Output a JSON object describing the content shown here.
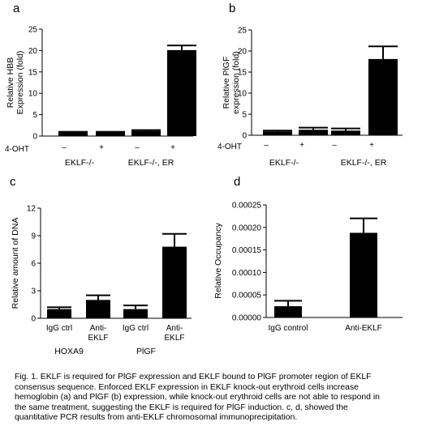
{
  "chart_data": [
    {
      "panel": "a",
      "type": "bar",
      "ylabel": [
        "Relative HBB",
        "Expression (fold)"
      ],
      "ylim": [
        0,
        25
      ],
      "yticks": [
        "0",
        "5",
        "10",
        "15",
        "20",
        "25"
      ],
      "treatment_label": "4-OHT",
      "treatment": [
        "–",
        "+",
        "–",
        "+"
      ],
      "groups": [
        "EKLF-/-",
        "EKLF-/-, ER"
      ],
      "values": [
        0.9,
        0.9,
        1.2,
        20.1
      ],
      "errors": [
        0.1,
        0.1,
        0.2,
        1.1
      ]
    },
    {
      "panel": "b",
      "type": "bar",
      "ylabel": [
        "Relative PlGF",
        "expression (fold)"
      ],
      "ylim": [
        0,
        25
      ],
      "yticks": [
        "0",
        "5",
        "10",
        "15",
        "20",
        "25"
      ],
      "treatment_label": "4-OHT",
      "treatment": [
        "–",
        "+",
        "–",
        "+"
      ],
      "groups": [
        "EKLF-/-",
        "EKLF-/-, ER"
      ],
      "values": [
        0.9,
        1.3,
        1.1,
        18.1
      ],
      "errors": [
        0.2,
        0.5,
        0.5,
        3.0
      ]
    },
    {
      "panel": "c",
      "type": "bar",
      "ylabel": [
        "Relative amount of DNA"
      ],
      "ylim": [
        0,
        12
      ],
      "yticks": [
        "0",
        "3",
        "6",
        "9",
        "12"
      ],
      "categories": [
        [
          "IgG ctrl"
        ],
        [
          "Anti-",
          "EKLF"
        ],
        [
          "IgG ctrl"
        ],
        [
          "Anti-",
          "EKLF"
        ]
      ],
      "groups": [
        "HOXA9",
        "PlGF"
      ],
      "values": [
        1.0,
        2.0,
        1.0,
        7.8
      ],
      "errors": [
        0.2,
        0.5,
        0.4,
        1.4
      ]
    },
    {
      "panel": "d",
      "type": "bar",
      "ylabel": [
        "Relative Occupancy"
      ],
      "ylim": [
        0,
        0.00025
      ],
      "yticks": [
        "0.00000",
        "0.00005",
        "0.00010",
        "0.00015",
        "0.00020",
        "0.00025"
      ],
      "categories": [
        [
          "IgG control"
        ],
        [
          "Anti-EKLF"
        ]
      ],
      "values": [
        2.5e-05,
        0.000188
      ],
      "errors": [
        1.2e-05,
        3.2e-05
      ]
    }
  ],
  "caption": {
    "lines": [
      "Fig. 1. EKLF is required for PlGF expression and EKLF bound to PlGF promoter region of EKLF",
      "consensus sequence. Enforced EKLF expression in EKLF knock-out erythroid cells increase",
      "hemoglobin (a) and PlGF (b) expression, while knock-out erythroid cells are not able to respond in",
      "the same treatment, suggesting the EKLF is required for PlGF induction. c, d, showed the",
      "quantitative PCR results from anti-EKLF chromosomal  immunoprecipitation."
    ]
  }
}
